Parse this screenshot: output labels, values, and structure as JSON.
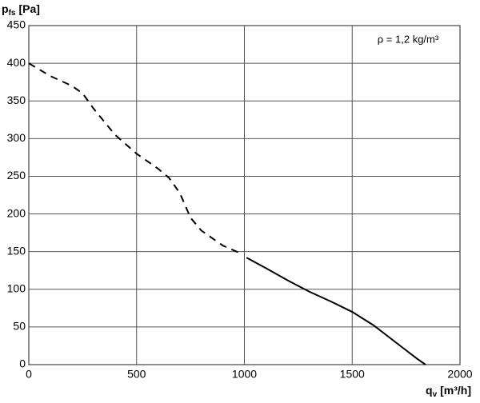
{
  "chart_data": {
    "type": "line",
    "y_label": {
      "symbol": "p",
      "subscript": "fs",
      "unit": "[Pa]"
    },
    "x_label": {
      "symbol": "q",
      "subscript": "v",
      "unit": "[m³/h]"
    },
    "annotation": "ρ = 1,2 kg/m³",
    "xlim": [
      0,
      2000
    ],
    "xticks": [
      0,
      500,
      1000,
      1500,
      2000
    ],
    "ylim": [
      0,
      450
    ],
    "yticks": [
      0,
      50,
      100,
      150,
      200,
      250,
      300,
      350,
      400,
      450
    ],
    "grid": true,
    "series": [
      {
        "color": "#000000",
        "linestyle": "dashed",
        "x": [
          0,
          100,
          200,
          250,
          300,
          400,
          500,
          600,
          650,
          700,
          750,
          800,
          900,
          980
        ],
        "values": [
          400,
          383,
          370,
          360,
          340,
          305,
          280,
          260,
          248,
          228,
          195,
          178,
          158,
          148
        ]
      },
      {
        "color": "#000000",
        "linestyle": "solid",
        "x": [
          1010,
          1100,
          1200,
          1300,
          1400,
          1500,
          1600,
          1700,
          1800,
          1840
        ],
        "values": [
          142,
          128,
          112,
          97,
          84,
          70,
          52,
          30,
          8,
          0
        ]
      }
    ]
  }
}
